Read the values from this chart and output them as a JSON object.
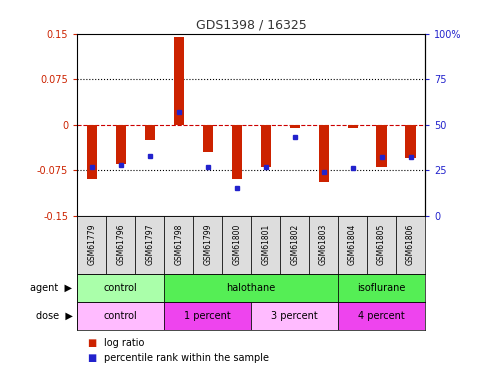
{
  "title": "GDS1398 / 16325",
  "samples": [
    "GSM61779",
    "GSM61796",
    "GSM61797",
    "GSM61798",
    "GSM61799",
    "GSM61800",
    "GSM61801",
    "GSM61802",
    "GSM61803",
    "GSM61804",
    "GSM61805",
    "GSM61806"
  ],
  "log_ratio": [
    -0.09,
    -0.065,
    -0.025,
    0.145,
    -0.045,
    -0.09,
    -0.07,
    -0.005,
    -0.095,
    -0.005,
    -0.07,
    -0.055
  ],
  "percentile_rank": [
    27,
    28,
    33,
    57,
    27,
    15,
    27,
    43,
    24,
    26,
    32,
    32
  ],
  "ylim_left": [
    -0.15,
    0.15
  ],
  "ylim_right": [
    0,
    100
  ],
  "yticks_left": [
    -0.15,
    -0.075,
    0,
    0.075,
    0.15
  ],
  "yticks_right": [
    0,
    25,
    50,
    75,
    100
  ],
  "ytick_labels_left": [
    "-0.15",
    "-0.075",
    "0",
    "0.075",
    "0.15"
  ],
  "ytick_labels_right": [
    "0",
    "25",
    "50",
    "75",
    "100%"
  ],
  "agent_groups": [
    {
      "label": "control",
      "start": 0,
      "end": 3,
      "color": "#aaffaa"
    },
    {
      "label": "halothane",
      "start": 3,
      "end": 9,
      "color": "#55ee55"
    },
    {
      "label": "isoflurane",
      "start": 9,
      "end": 12,
      "color": "#55ee55"
    }
  ],
  "dose_groups": [
    {
      "label": "control",
      "start": 0,
      "end": 3,
      "color": "#ffbbff"
    },
    {
      "label": "1 percent",
      "start": 3,
      "end": 6,
      "color": "#ee44ee"
    },
    {
      "label": "3 percent",
      "start": 6,
      "end": 9,
      "color": "#ffbbff"
    },
    {
      "label": "4 percent",
      "start": 9,
      "end": 12,
      "color": "#ee44ee"
    }
  ],
  "bar_color": "#cc2200",
  "dot_color": "#2222cc",
  "hline_color": "#cc0000",
  "grid_color": "#000000",
  "bar_width": 0.35,
  "title_color": "#333333",
  "left_axis_color": "#cc2200",
  "right_axis_color": "#2222cc"
}
